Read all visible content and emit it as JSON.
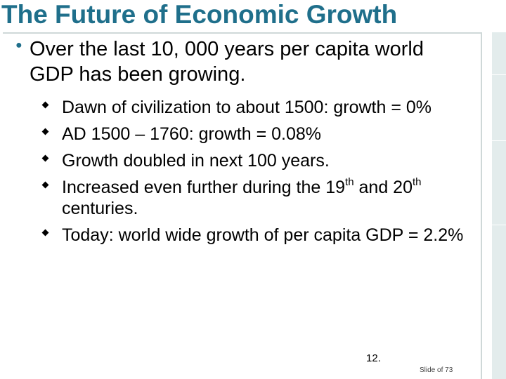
{
  "title": "The Future of Economic Growth",
  "main_bullet": "Over the last 10, 000 years per capita world GDP has been growing.",
  "sub_bullets": {
    "b1": "Dawn of civilization to about 1500: growth = 0%",
    "b2": "AD 1500 – 1760: growth = 0.08%",
    "b3": "Growth doubled in next 100 years.",
    "b4_part1": "Increased even further during the 19",
    "b4_sup1": "th",
    "b4_part2": " and 20",
    "b4_sup2": "th",
    "b4_part3": " centuries.",
    "b5": "Today: world wide growth of per capita GDP = 2.2%"
  },
  "footer": {
    "page_number": "12.",
    "slide_label": "Slide of 73"
  },
  "colors": {
    "title": "#1f6f8b",
    "frame": "#cfd8d8",
    "strip": "#e3ecec"
  },
  "icons": {
    "main_bullet": "round-bullet-icon",
    "sub_bullet": "square-bullet-icon"
  }
}
